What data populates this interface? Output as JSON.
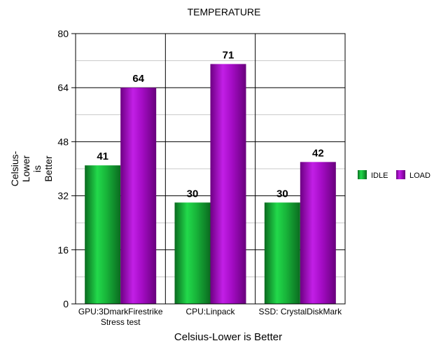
{
  "chart_data": {
    "type": "bar",
    "title": "TEMPERATURE",
    "xlabel": "Celsius-Lower is Better",
    "ylabel": [
      "Celsius-",
      "Lower",
      "is",
      "Better"
    ],
    "categories": [
      [
        "GPU:3DmarkFirestrike",
        "Stress test"
      ],
      [
        "CPU:Linpack"
      ],
      [
        "SSD: CrystalDiskMark"
      ]
    ],
    "series": [
      {
        "name": "IDLE",
        "values": [
          41,
          30,
          30
        ],
        "color": "#1aa83a"
      },
      {
        "name": "LOAD",
        "values": [
          64,
          71,
          42
        ],
        "color": "#a400c4"
      }
    ],
    "ylim": [
      0,
      80
    ],
    "yticks": [
      "0",
      "16",
      "32",
      "48",
      "64",
      "80"
    ],
    "grid": true,
    "legend_position": "right",
    "data_labels": true
  }
}
